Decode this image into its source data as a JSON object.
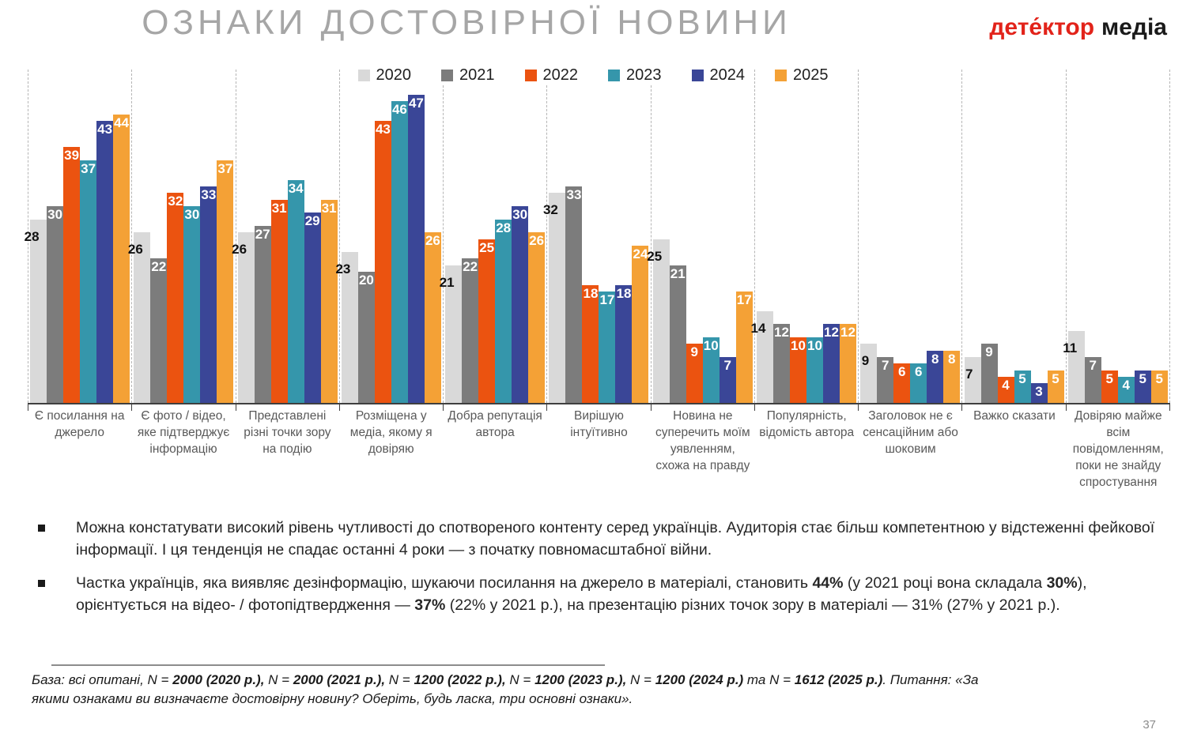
{
  "title": "ОЗНАКИ ДОСТОВІРНОЇ НОВИНИ",
  "logo": {
    "brand_red": "дете́ктор",
    "brand_black": "медіа"
  },
  "page_number": "37",
  "chart_data": {
    "type": "bar",
    "title": "ОЗНАКИ ДОСТОВІРНОЇ НОВИНИ",
    "unit": "%",
    "ylim": [
      0,
      50
    ],
    "grid": "vertical-dashed-separators",
    "legend_position": "top",
    "categories": [
      "Є посилання на джерело",
      "Є фото / відео, яке підтверджує інформацію",
      "Представлені різні точки зору на подію",
      "Розміщена у медіа, якому я довіряю",
      "Добра репутація автора",
      "Вирішую інтуїтивно",
      "Новина не суперечить моїм уявленням, схожа на правду",
      "Популярність, відомість автора",
      "Заголовок не є сенсаційним або шоковим",
      "Важко сказати",
      "Довіряю майже всім повідомленням, поки не знайду спростування"
    ],
    "series": [
      {
        "name": "2020",
        "color": "#d9d9d9",
        "label_color": "#111111",
        "values": [
          28,
          26,
          26,
          23,
          21,
          32,
          25,
          14,
          9,
          7,
          11
        ]
      },
      {
        "name": "2021",
        "color": "#7c7c7c",
        "label_color": "#ffffff",
        "values": [
          30,
          22,
          27,
          20,
          22,
          33,
          21,
          12,
          7,
          9,
          7
        ]
      },
      {
        "name": "2022",
        "color": "#eb5310",
        "label_color": "#ffffff",
        "values": [
          39,
          32,
          31,
          43,
          25,
          18,
          9,
          10,
          6,
          4,
          5
        ]
      },
      {
        "name": "2023",
        "color": "#3596ab",
        "label_color": "#ffffff",
        "values": [
          37,
          30,
          34,
          46,
          28,
          17,
          10,
          10,
          6,
          5,
          4
        ]
      },
      {
        "name": "2024",
        "color": "#3a4697",
        "label_color": "#ffffff",
        "values": [
          43,
          33,
          29,
          47,
          30,
          18,
          7,
          12,
          8,
          3,
          5
        ]
      },
      {
        "name": "2025",
        "color": "#f4a136",
        "label_color": "#ffffff",
        "values": [
          44,
          37,
          31,
          26,
          26,
          24,
          17,
          12,
          8,
          5,
          5
        ]
      }
    ]
  },
  "bullets": [
    {
      "segments": [
        {
          "t": "Можна констатувати високий рівень чутливості до спотвореного контенту серед українців. Аудиторія стає більш компетентною у відстеженні фейкової інформації. І ця тенденція не спадає останні 4 роки — з початку повномасштабної війни.",
          "b": false
        }
      ]
    },
    {
      "segments": [
        {
          "t": "Частка українців, яка виявляє дезінформацію, шукаючи посилання на джерело в матеріалі, становить ",
          "b": false
        },
        {
          "t": "44%",
          "b": true
        },
        {
          "t": " (у 2021 році вона складала ",
          "b": false
        },
        {
          "t": "30%",
          "b": true
        },
        {
          "t": "), орієнтується на відео- / фотопідтвердження — ",
          "b": false
        },
        {
          "t": "37%",
          "b": true
        },
        {
          "t": " (22% у 2021 р.), на презентацію різних точок зору в матеріалі — 31% (27% у 2021 р.).",
          "b": false
        }
      ]
    }
  ],
  "footer": {
    "segments": [
      {
        "t": "База: всі опитані, N = ",
        "b": false
      },
      {
        "t": "2000 (2020 р.),",
        "b": true
      },
      {
        "t": " N = ",
        "b": false
      },
      {
        "t": "2000 (2021 р.),",
        "b": true
      },
      {
        "t": " N = ",
        "b": false
      },
      {
        "t": "1200 (2022 р.),",
        "b": true
      },
      {
        "t": " N = ",
        "b": false
      },
      {
        "t": "1200 (2023 р.),",
        "b": true
      },
      {
        "t": " N = ",
        "b": false
      },
      {
        "t": "1200 (2024 р.)",
        "b": true
      },
      {
        "t": " та N = ",
        "b": false
      },
      {
        "t": "1612 (2025 р.)",
        "b": true
      },
      {
        "t": ". Питання: «За якими ознаками ви визначаєте достовірну новину? Оберіть, будь ласка, три основні ознаки».",
        "b": false
      }
    ]
  }
}
